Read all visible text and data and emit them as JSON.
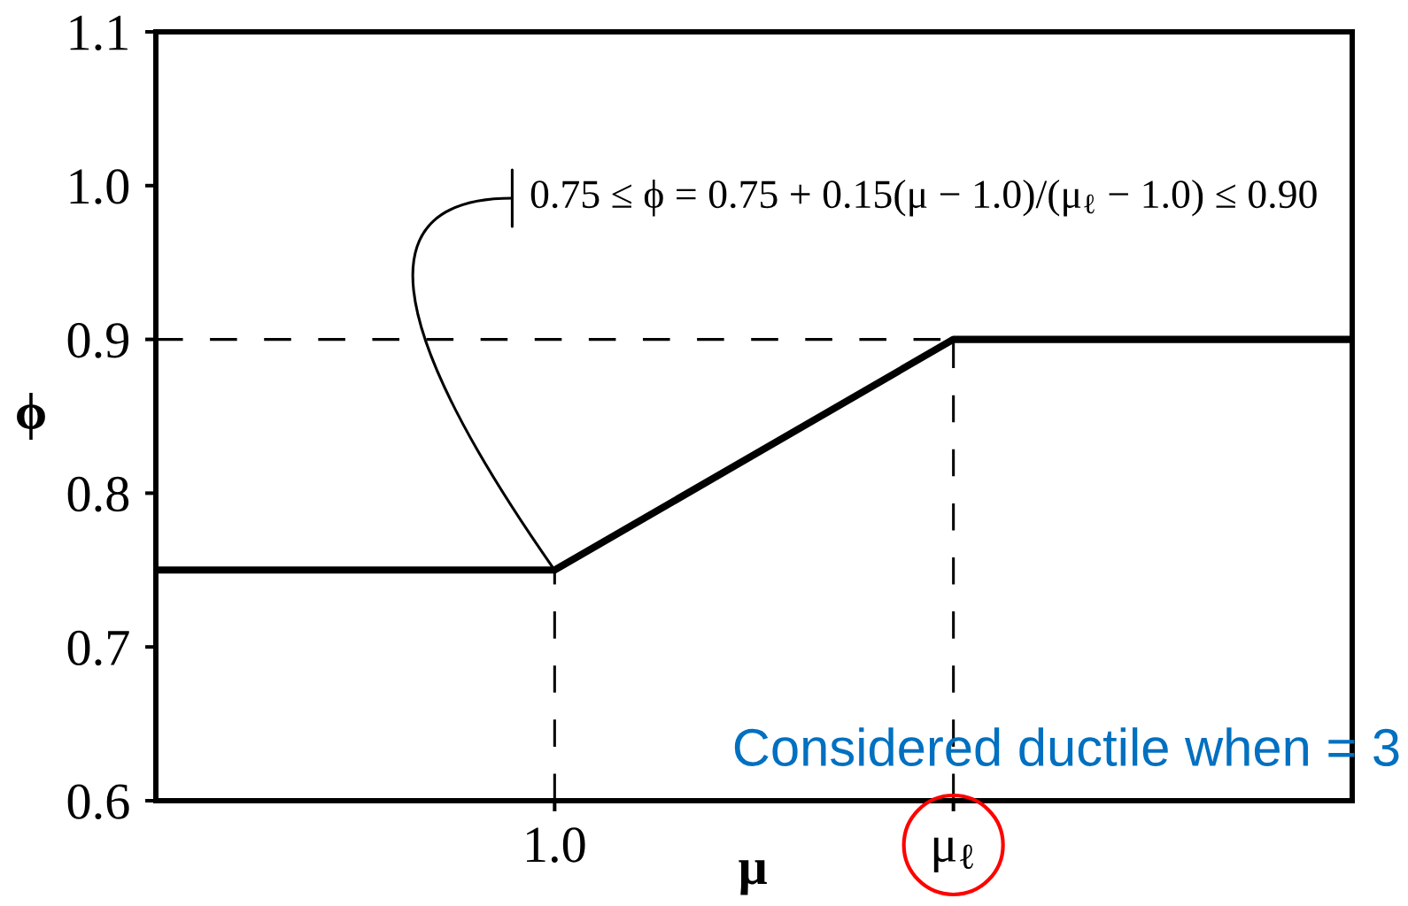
{
  "chart_data": {
    "type": "line",
    "xlabel": "μ",
    "ylabel": "ϕ",
    "categories": [
      null,
      "1.0",
      "μ$_{ℓ}$",
      null
    ],
    "series": [
      {
        "color": "#000000",
        "values": [
          0.75,
          0.75,
          0.9,
          0.9
        ]
      }
    ],
    "ylim": [
      0.6,
      1.1
    ],
    "yticks": [
      0.6,
      0.7,
      0.8,
      0.9,
      {
        "value": 1,
        "label": "1.0"
      },
      1.1
    ],
    "ref_lines": [
      {
        "axis": "y",
        "value": 0.9,
        "line_style": "dashed",
        "color": "#000000"
      },
      {
        "axis": "x",
        "value": "1.0",
        "line_style": "dashed",
        "color": "#000000"
      },
      {
        "axis": "x",
        "value": "μ$_{ℓ}$",
        "line_style": "dashed",
        "color": "#000000"
      }
    ],
    "annotations": [
      {
        "text": "0.75 ≤ ϕ = 0.75 + 0.15(μ − 1.0)/(μ$_{ℓ}$ − 1.0) ≤ 0.90",
        "x": "1.0",
        "y": 0.75
      },
      "Considered ductile when = 3"
    ],
    "grid": false,
    "marker": "none",
    "line_style": "solid"
  }
}
